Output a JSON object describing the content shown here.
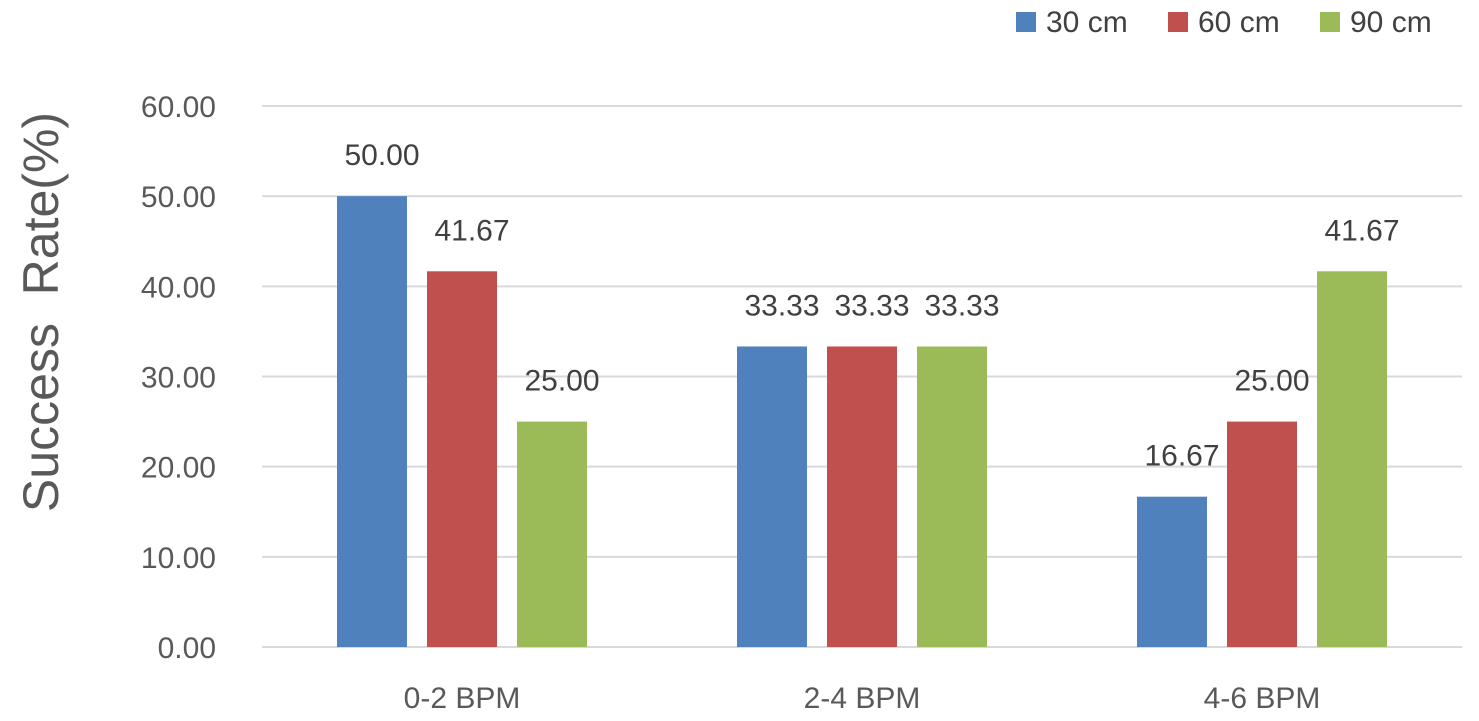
{
  "chart_data": {
    "type": "bar",
    "title": "",
    "xlabel": "",
    "ylabel": "Success  Rate(%)",
    "ylim": [
      0,
      60
    ],
    "yticks": [
      "0.00",
      "10.00",
      "20.00",
      "30.00",
      "40.00",
      "50.00",
      "60.00"
    ],
    "categories": [
      "0-2 BPM",
      "2-4 BPM",
      "4-6 BPM"
    ],
    "series": [
      {
        "name": "30 cm",
        "color": "#4f81bd",
        "values": [
          50.0,
          33.33,
          16.67
        ],
        "labels": [
          "50.00",
          "33.33",
          "16.67"
        ]
      },
      {
        "name": "60 cm",
        "color": "#c0504d",
        "values": [
          41.67,
          33.33,
          25.0
        ],
        "labels": [
          "41.67",
          "33.33",
          "25.00"
        ]
      },
      {
        "name": "90 cm",
        "color": "#9bbb59",
        "values": [
          25.0,
          33.33,
          41.67
        ],
        "labels": [
          "25.00",
          "33.33",
          "41.67"
        ]
      }
    ],
    "grid": true,
    "legend": "top-right",
    "data_labels": true
  }
}
